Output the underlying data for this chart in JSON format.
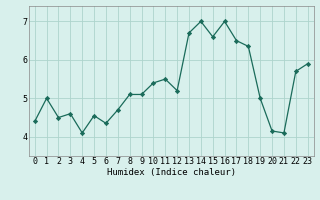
{
  "x": [
    0,
    1,
    2,
    3,
    4,
    5,
    6,
    7,
    8,
    9,
    10,
    11,
    12,
    13,
    14,
    15,
    16,
    17,
    18,
    19,
    20,
    21,
    22,
    23
  ],
  "y": [
    4.4,
    5.0,
    4.5,
    4.6,
    4.1,
    4.55,
    4.35,
    4.7,
    5.1,
    5.1,
    5.4,
    5.5,
    5.2,
    6.7,
    7.0,
    6.6,
    7.0,
    6.5,
    6.35,
    5.0,
    4.15,
    4.1,
    5.7,
    5.9
  ],
  "line_color": "#1a6b5a",
  "marker": "D",
  "marker_size": 2.2,
  "bg_color": "#d8f0ec",
  "grid_color": "#aed4cc",
  "xlabel": "Humidex (Indice chaleur)",
  "xlim": [
    -0.5,
    23.5
  ],
  "ylim": [
    3.5,
    7.4
  ],
  "yticks": [
    4,
    5,
    6,
    7
  ],
  "xticks": [
    0,
    1,
    2,
    3,
    4,
    5,
    6,
    7,
    8,
    9,
    10,
    11,
    12,
    13,
    14,
    15,
    16,
    17,
    18,
    19,
    20,
    21,
    22,
    23
  ],
  "xlabel_fontsize": 6.5,
  "tick_fontsize": 6.0,
  "linewidth": 0.9
}
